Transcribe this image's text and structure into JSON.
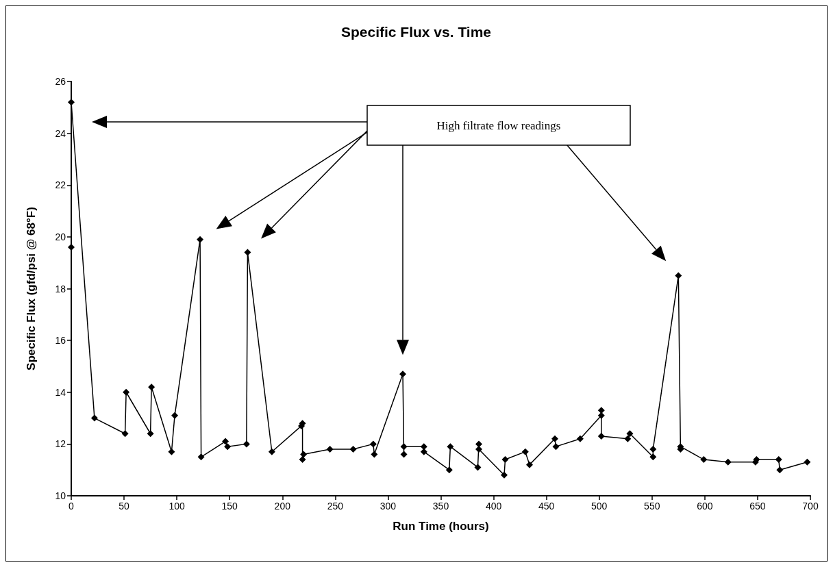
{
  "chart_data": {
    "type": "line",
    "title": "Specific Flux vs. Time",
    "xlabel": "Run Time (hours)",
    "ylabel": "Specific Flux (gfd/psi @ 68°F)",
    "annotations": [
      "High filtrate flow readings"
    ],
    "series": [
      {
        "color": "#000000",
        "x": [
          0,
          0,
          22,
          51,
          52,
          75,
          76,
          95,
          98,
          122,
          123,
          146,
          148,
          166,
          167,
          190,
          218,
          219,
          219,
          220,
          245,
          267,
          286,
          287,
          314,
          315,
          315,
          334,
          334,
          358,
          359,
          385,
          386,
          386,
          410,
          411,
          430,
          434,
          458,
          459,
          482,
          502,
          502,
          502,
          527,
          529,
          551,
          551,
          575,
          577,
          577,
          599,
          622,
          648,
          649,
          670,
          671,
          697
        ],
        "values": [
          19.6,
          25.2,
          13.0,
          12.4,
          14.0,
          12.4,
          14.2,
          11.7,
          13.1,
          19.9,
          11.5,
          12.1,
          11.9,
          12.0,
          19.4,
          11.7,
          12.7,
          12.8,
          11.4,
          11.6,
          11.8,
          11.8,
          12.0,
          11.6,
          14.7,
          11.6,
          11.9,
          11.9,
          11.7,
          11.0,
          11.9,
          11.1,
          12.0,
          11.8,
          10.8,
          11.4,
          11.7,
          11.2,
          12.2,
          11.9,
          12.2,
          13.1,
          13.3,
          12.3,
          12.2,
          12.4,
          11.5,
          11.8,
          18.5,
          11.8,
          11.9,
          11.4,
          11.3,
          11.3,
          11.4,
          11.4,
          11.0,
          11.3
        ]
      }
    ],
    "xlim": [
      0,
      700
    ],
    "xticks": [
      0,
      50,
      100,
      150,
      200,
      250,
      300,
      350,
      400,
      450,
      500,
      550,
      600,
      650,
      700
    ],
    "ylim": [
      10,
      26
    ],
    "yticks": [
      10,
      12,
      14,
      16,
      18,
      20,
      22,
      24,
      26
    ],
    "grid": false,
    "marker": "diamond",
    "line_style": "solid"
  }
}
